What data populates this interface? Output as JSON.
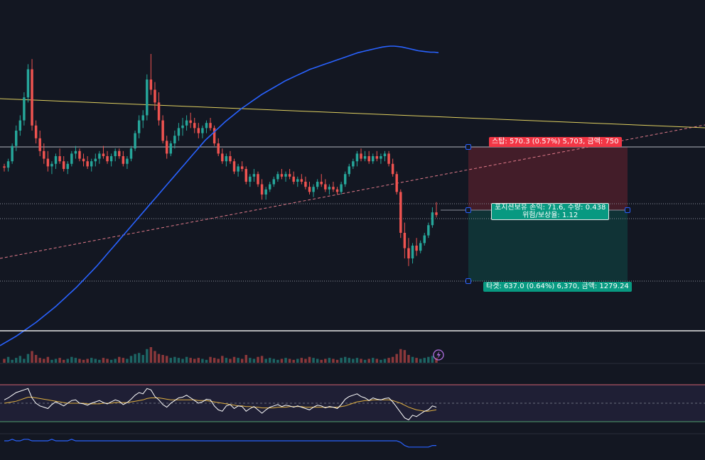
{
  "theme": {
    "background": "#131722",
    "bull": "#26a69a",
    "bear": "#ef5350",
    "ma_line": "#2962ff",
    "trend_line": "#e0d060",
    "dashed_line": "#e07a8a",
    "stop_zone": "#f23645",
    "target_zone": "#089981",
    "rsi_line": "#ffffff",
    "rsi_ma": "#e0b040",
    "rsi_band": "#7e57c2"
  },
  "position_tool": {
    "stop_label": "스탑: 570.3 (0.57%) 5,703, 금액: 750",
    "target_label": "타겟: 637.0 (0.64%) 6,370, 금액: 1279.24",
    "pnl_label": "포지션보유 손익: 71.6, 수량: 0.438",
    "ratio_label": "위험/보상율: 1.12"
  },
  "chart_data": [
    {
      "type": "candlestick",
      "role": "price",
      "ylim": [
        0,
        100
      ],
      "note_scale": "relative price units (no axis shown)",
      "candles_ohlc": [
        [
          46,
          47,
          44,
          45.5
        ],
        [
          45.5,
          49,
          44,
          48
        ],
        [
          48,
          55,
          47,
          54
        ],
        [
          54,
          62,
          52,
          60
        ],
        [
          60,
          66,
          58,
          64
        ],
        [
          64,
          75,
          62,
          73
        ],
        [
          73,
          86,
          71,
          84
        ],
        [
          84,
          88,
          60,
          62
        ],
        [
          62,
          64,
          55,
          57
        ],
        [
          57,
          60,
          50,
          52
        ],
        [
          52,
          55,
          47,
          49
        ],
        [
          49,
          52,
          44,
          46
        ],
        [
          46,
          48,
          43,
          47
        ],
        [
          47,
          51,
          45,
          50
        ],
        [
          50,
          53,
          47,
          48
        ],
        [
          48,
          50,
          44,
          45
        ],
        [
          45,
          48,
          43,
          47
        ],
        [
          47,
          52,
          46,
          51
        ],
        [
          51,
          54,
          49,
          52
        ],
        [
          52,
          53,
          48,
          49
        ],
        [
          49,
          51,
          46,
          48
        ],
        [
          48,
          50,
          45,
          46
        ],
        [
          46,
          49,
          44,
          48
        ],
        [
          48,
          51,
          46,
          49
        ],
        [
          49,
          52,
          47,
          51
        ],
        [
          51,
          54,
          49,
          50
        ],
        [
          50,
          52,
          47,
          48
        ],
        [
          48,
          51,
          46,
          50
        ],
        [
          50,
          53,
          48,
          52
        ],
        [
          52,
          53,
          49,
          50
        ],
        [
          50,
          52,
          46,
          47
        ],
        [
          47,
          50,
          45,
          49
        ],
        [
          49,
          54,
          48,
          53
        ],
        [
          53,
          60,
          52,
          59
        ],
        [
          59,
          66,
          57,
          64
        ],
        [
          64,
          68,
          61,
          66
        ],
        [
          66,
          82,
          64,
          80
        ],
        [
          80,
          90,
          74,
          76
        ],
        [
          76,
          79,
          68,
          71
        ],
        [
          71,
          75,
          62,
          64
        ],
        [
          64,
          66,
          55,
          56
        ],
        [
          56,
          58,
          49,
          51
        ],
        [
          51,
          56,
          50,
          55
        ],
        [
          55,
          60,
          53,
          58
        ],
        [
          58,
          63,
          56,
          61
        ],
        [
          61,
          65,
          58,
          62
        ],
        [
          62,
          66,
          60,
          64
        ],
        [
          64,
          67,
          61,
          63
        ],
        [
          63,
          65,
          59,
          61
        ],
        [
          61,
          63,
          57,
          59
        ],
        [
          59,
          62,
          57,
          61
        ],
        [
          61,
          64,
          59,
          63
        ],
        [
          63,
          65,
          60,
          61
        ],
        [
          61,
          62,
          54,
          55
        ],
        [
          55,
          57,
          50,
          51
        ],
        [
          51,
          53,
          47,
          48
        ],
        [
          48,
          51,
          46,
          50
        ],
        [
          50,
          52,
          47,
          48
        ],
        [
          48,
          49,
          43,
          44
        ],
        [
          44,
          47,
          42,
          46
        ],
        [
          46,
          48,
          44,
          45
        ],
        [
          45,
          46,
          39,
          40
        ],
        [
          40,
          43,
          38,
          42
        ],
        [
          42,
          45,
          40,
          43
        ],
        [
          43,
          44,
          38,
          39
        ],
        [
          39,
          41,
          33,
          35
        ],
        [
          35,
          38,
          33,
          37
        ],
        [
          37,
          40,
          36,
          39
        ],
        [
          39,
          42,
          38,
          41
        ],
        [
          41,
          44,
          40,
          43
        ],
        [
          43,
          45,
          41,
          42
        ],
        [
          42,
          44,
          40,
          43
        ],
        [
          43,
          45,
          41,
          42
        ],
        [
          42,
          44,
          39,
          40
        ],
        [
          40,
          42,
          38,
          41
        ],
        [
          41,
          43,
          39,
          40
        ],
        [
          40,
          42,
          37,
          38
        ],
        [
          38,
          40,
          35,
          36
        ],
        [
          36,
          39,
          34,
          38
        ],
        [
          38,
          41,
          37,
          40
        ],
        [
          40,
          43,
          38,
          39
        ],
        [
          39,
          41,
          36,
          37
        ],
        [
          37,
          39,
          35,
          38
        ],
        [
          38,
          40,
          36,
          37
        ],
        [
          37,
          38,
          35,
          36
        ],
        [
          36,
          40,
          35,
          39
        ],
        [
          39,
          44,
          38,
          43
        ],
        [
          43,
          47,
          42,
          46
        ],
        [
          46,
          49,
          45,
          48
        ],
        [
          48,
          52,
          46,
          51
        ],
        [
          51,
          53,
          48,
          49
        ],
        [
          49,
          52,
          48,
          50
        ],
        [
          50,
          52,
          47,
          48
        ],
        [
          48,
          51,
          47,
          50
        ],
        [
          50,
          52,
          48,
          49
        ],
        [
          49,
          51,
          47,
          50
        ],
        [
          50,
          52,
          48,
          51
        ],
        [
          51,
          52,
          46,
          47
        ],
        [
          47,
          49,
          42,
          43
        ],
        [
          43,
          44,
          35,
          36
        ],
        [
          36,
          37,
          18,
          20
        ],
        [
          20,
          24,
          10,
          14
        ],
        [
          14,
          18,
          7,
          10
        ],
        [
          10,
          16,
          8,
          15
        ],
        [
          15,
          18,
          11,
          13
        ],
        [
          13,
          17,
          12,
          16
        ],
        [
          16,
          20,
          15,
          19
        ],
        [
          19,
          24,
          18,
          23
        ],
        [
          23,
          30,
          22,
          28
        ],
        [
          28,
          32,
          26,
          27
        ]
      ]
    },
    {
      "type": "line",
      "role": "moving-average",
      "values": [
        2,
        2.5,
        3,
        3.5,
        4,
        4.6,
        5.2,
        5.8,
        6.4,
        7,
        7.7,
        8.4,
        9.1,
        9.8,
        10.5,
        11.3,
        12.1,
        12.9,
        13.7,
        14.5,
        15.4,
        16.3,
        17.2,
        18.1,
        19,
        20,
        21,
        22,
        23,
        24,
        25,
        26,
        27,
        28,
        29,
        30,
        31,
        32,
        33,
        34,
        35,
        36,
        37,
        38,
        39,
        40,
        41,
        42,
        43,
        44,
        45,
        46,
        46.8,
        47.6,
        48.4,
        49.2,
        50,
        50.7,
        51.4,
        52.1,
        52.8,
        53.4,
        54,
        54.6,
        55.2,
        55.8,
        56.3,
        56.8,
        57.3,
        57.8,
        58.3,
        58.8,
        59.2,
        59.6,
        60,
        60.4,
        60.8,
        61.2,
        61.5,
        61.8,
        62.1,
        62.4,
        62.7,
        63,
        63.3,
        63.6,
        63.9,
        64.2,
        64.5,
        64.8,
        65,
        65.2,
        65.4,
        65.6,
        65.8,
        66,
        66.1,
        66.2,
        66.2,
        66.1,
        66,
        65.8,
        65.6,
        65.4,
        65.2,
        65.1,
        65,
        64.9,
        64.9,
        64.8
      ]
    },
    {
      "type": "bar",
      "role": "volume",
      "values": [
        4,
        6,
        3,
        5,
        7,
        4,
        9,
        12,
        8,
        5,
        4,
        6,
        3,
        4,
        5,
        3,
        4,
        6,
        5,
        4,
        3,
        4,
        5,
        4,
        3,
        5,
        4,
        3,
        4,
        6,
        5,
        4,
        7,
        9,
        10,
        8,
        14,
        16,
        12,
        9,
        8,
        7,
        5,
        6,
        5,
        4,
        6,
        5,
        4,
        5,
        4,
        3,
        6,
        5,
        4,
        7,
        5,
        4,
        6,
        5,
        4,
        8,
        5,
        4,
        6,
        7,
        4,
        5,
        4,
        3,
        4,
        5,
        4,
        3,
        4,
        5,
        4,
        6,
        5,
        4,
        3,
        4,
        5,
        4,
        3,
        5,
        6,
        5,
        4,
        5,
        4,
        3,
        4,
        5,
        4,
        3,
        4,
        5,
        6,
        9,
        14,
        13,
        8,
        6,
        5,
        4,
        5,
        6,
        7,
        5
      ]
    },
    {
      "type": "line",
      "role": "rsi",
      "ylim": [
        0,
        100
      ],
      "band": [
        30,
        70
      ],
      "values": [
        55,
        58,
        62,
        66,
        68,
        70,
        72,
        58,
        50,
        46,
        44,
        42,
        48,
        52,
        49,
        46,
        50,
        54,
        55,
        50,
        49,
        47,
        50,
        52,
        54,
        51,
        49,
        52,
        55,
        53,
        48,
        51,
        56,
        62,
        66,
        64,
        72,
        70,
        60,
        55,
        48,
        44,
        50,
        54,
        58,
        59,
        62,
        58,
        54,
        50,
        52,
        56,
        55,
        46,
        40,
        38,
        46,
        48,
        42,
        46,
        45,
        38,
        42,
        45,
        40,
        35,
        40,
        44,
        46,
        48,
        45,
        47,
        46,
        44,
        46,
        44,
        42,
        40,
        44,
        47,
        46,
        43,
        45,
        44,
        42,
        48,
        56,
        60,
        62,
        64,
        60,
        58,
        54,
        58,
        56,
        55,
        57,
        58,
        52,
        44,
        36,
        28,
        25,
        32,
        30,
        34,
        38,
        40,
        46,
        44
      ],
      "ma_values": [
        50,
        51,
        52,
        53,
        55,
        57,
        59,
        59,
        58,
        57,
        56,
        55,
        54,
        53,
        52,
        51,
        50,
        50,
        50,
        50,
        50,
        49,
        49,
        49,
        49,
        50,
        50,
        50,
        51,
        51,
        51,
        51,
        52,
        53,
        54,
        55,
        57,
        58,
        58,
        58,
        57,
        56,
        55,
        55,
        55,
        55,
        55,
        55,
        55,
        54,
        54,
        54,
        53,
        52,
        51,
        50,
        49,
        48,
        47,
        46,
        46,
        45,
        45,
        44,
        44,
        43,
        43,
        43,
        43,
        44,
        44,
        44,
        45,
        45,
        45,
        45,
        44,
        44,
        44,
        44,
        44,
        44,
        44,
        44,
        44,
        45,
        46,
        48,
        50,
        52,
        53,
        54,
        54,
        55,
        55,
        55,
        55,
        55,
        54,
        52,
        50,
        47,
        44,
        42,
        40,
        39,
        38,
        38,
        39,
        40
      ]
    },
    {
      "type": "line",
      "role": "indicator",
      "values": [
        50,
        50,
        51,
        50,
        50,
        51,
        51,
        50,
        50,
        50,
        50,
        50,
        51,
        50,
        50,
        50,
        50,
        51,
        50,
        50,
        50,
        50,
        50,
        50,
        50,
        50,
        50,
        50,
        50,
        50,
        50,
        50,
        50,
        50,
        50,
        50,
        50,
        50,
        50,
        50,
        50,
        50,
        50,
        50,
        50,
        50,
        50,
        50,
        50,
        50,
        50,
        50,
        50,
        50,
        50,
        50,
        50,
        50,
        50,
        50,
        50,
        50,
        50,
        50,
        50,
        50,
        50,
        50,
        50,
        50,
        50,
        50,
        50,
        50,
        50,
        50,
        50,
        50,
        50,
        50,
        50,
        50,
        50,
        50,
        50,
        50,
        50,
        50,
        50,
        50,
        50,
        50,
        50,
        50,
        50,
        50,
        50,
        50,
        50,
        50,
        49,
        47,
        46,
        46,
        46,
        46,
        46,
        46,
        47,
        47
      ]
    }
  ]
}
